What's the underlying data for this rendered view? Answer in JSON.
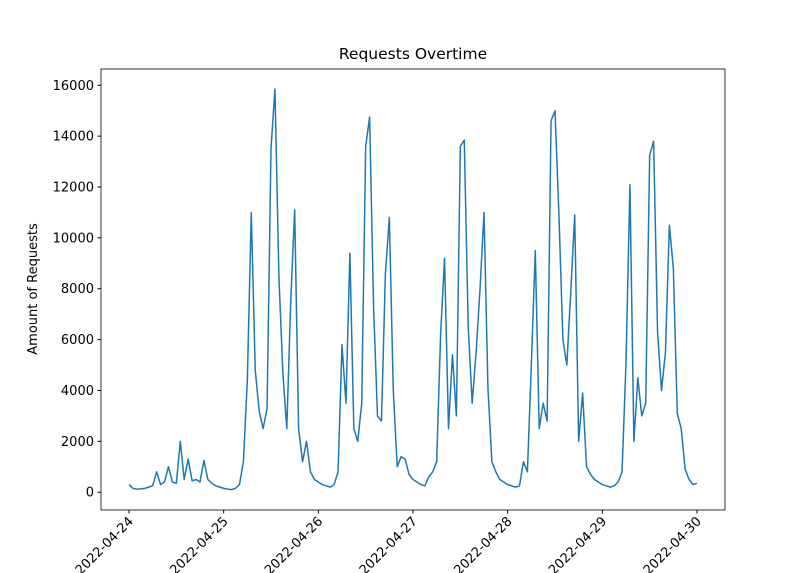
{
  "chart_data": {
    "type": "line",
    "title": "Requests Overtime",
    "y_label": "Amount of Requests",
    "x": [
      "2022-04-24T00:00",
      "2022-04-24T01:00",
      "2022-04-24T02:00",
      "2022-04-24T03:00",
      "2022-04-24T04:00",
      "2022-04-24T05:00",
      "2022-04-24T06:00",
      "2022-04-24T07:00",
      "2022-04-24T08:00",
      "2022-04-24T09:00",
      "2022-04-24T10:00",
      "2022-04-24T11:00",
      "2022-04-24T12:00",
      "2022-04-24T13:00",
      "2022-04-24T14:00",
      "2022-04-24T15:00",
      "2022-04-24T16:00",
      "2022-04-24T17:00",
      "2022-04-24T18:00",
      "2022-04-24T19:00",
      "2022-04-24T20:00",
      "2022-04-24T21:00",
      "2022-04-24T22:00",
      "2022-04-24T23:00",
      "2022-04-25T00:00",
      "2022-04-25T01:00",
      "2022-04-25T02:00",
      "2022-04-25T03:00",
      "2022-04-25T04:00",
      "2022-04-25T05:00",
      "2022-04-25T06:00",
      "2022-04-25T07:00",
      "2022-04-25T08:00",
      "2022-04-25T09:00",
      "2022-04-25T10:00",
      "2022-04-25T11:00",
      "2022-04-25T12:00",
      "2022-04-25T13:00",
      "2022-04-25T14:00",
      "2022-04-25T15:00",
      "2022-04-25T16:00",
      "2022-04-25T17:00",
      "2022-04-25T18:00",
      "2022-04-25T19:00",
      "2022-04-25T20:00",
      "2022-04-25T21:00",
      "2022-04-25T22:00",
      "2022-04-25T23:00",
      "2022-04-26T00:00",
      "2022-04-26T01:00",
      "2022-04-26T02:00",
      "2022-04-26T03:00",
      "2022-04-26T04:00",
      "2022-04-26T05:00",
      "2022-04-26T06:00",
      "2022-04-26T07:00",
      "2022-04-26T08:00",
      "2022-04-26T09:00",
      "2022-04-26T10:00",
      "2022-04-26T11:00",
      "2022-04-26T12:00",
      "2022-04-26T13:00",
      "2022-04-26T14:00",
      "2022-04-26T15:00",
      "2022-04-26T16:00",
      "2022-04-26T17:00",
      "2022-04-26T18:00",
      "2022-04-26T19:00",
      "2022-04-26T20:00",
      "2022-04-26T21:00",
      "2022-04-26T22:00",
      "2022-04-26T23:00",
      "2022-04-27T00:00",
      "2022-04-27T01:00",
      "2022-04-27T02:00",
      "2022-04-27T03:00",
      "2022-04-27T04:00",
      "2022-04-27T05:00",
      "2022-04-27T06:00",
      "2022-04-27T07:00",
      "2022-04-27T08:00",
      "2022-04-27T09:00",
      "2022-04-27T10:00",
      "2022-04-27T11:00",
      "2022-04-27T12:00",
      "2022-04-27T13:00",
      "2022-04-27T14:00",
      "2022-04-27T15:00",
      "2022-04-27T16:00",
      "2022-04-27T17:00",
      "2022-04-27T18:00",
      "2022-04-27T19:00",
      "2022-04-27T20:00",
      "2022-04-27T21:00",
      "2022-04-27T22:00",
      "2022-04-27T23:00",
      "2022-04-28T00:00",
      "2022-04-28T01:00",
      "2022-04-28T02:00",
      "2022-04-28T03:00",
      "2022-04-28T04:00",
      "2022-04-28T05:00",
      "2022-04-28T06:00",
      "2022-04-28T07:00",
      "2022-04-28T08:00",
      "2022-04-28T09:00",
      "2022-04-28T10:00",
      "2022-04-28T11:00",
      "2022-04-28T12:00",
      "2022-04-28T13:00",
      "2022-04-28T14:00",
      "2022-04-28T15:00",
      "2022-04-28T16:00",
      "2022-04-28T17:00",
      "2022-04-28T18:00",
      "2022-04-28T19:00",
      "2022-04-28T20:00",
      "2022-04-28T21:00",
      "2022-04-28T22:00",
      "2022-04-28T23:00",
      "2022-04-29T00:00",
      "2022-04-29T01:00",
      "2022-04-29T02:00",
      "2022-04-29T03:00",
      "2022-04-29T04:00",
      "2022-04-29T05:00",
      "2022-04-29T06:00",
      "2022-04-29T07:00",
      "2022-04-29T08:00",
      "2022-04-29T09:00",
      "2022-04-29T10:00",
      "2022-04-29T11:00",
      "2022-04-29T12:00",
      "2022-04-29T13:00",
      "2022-04-29T14:00",
      "2022-04-29T15:00",
      "2022-04-29T16:00",
      "2022-04-29T17:00",
      "2022-04-29T18:00",
      "2022-04-29T19:00",
      "2022-04-29T20:00",
      "2022-04-29T21:00",
      "2022-04-29T22:00",
      "2022-04-29T23:00",
      "2022-04-30T00:00"
    ],
    "series": [
      {
        "name": "Requests",
        "color": "#1f77b4",
        "values": [
          300,
          150,
          120,
          130,
          150,
          200,
          250,
          800,
          300,
          400,
          1000,
          400,
          350,
          2000,
          500,
          1300,
          450,
          500,
          400,
          1250,
          500,
          350,
          250,
          200,
          150,
          120,
          100,
          150,
          300,
          1200,
          4400,
          11000,
          4800,
          3200,
          2500,
          3300,
          13500,
          15850,
          8500,
          4700,
          2500,
          7500,
          11100,
          2500,
          1200,
          2000,
          800,
          500,
          400,
          300,
          250,
          200,
          300,
          800,
          5800,
          3500,
          9400,
          2500,
          2000,
          3500,
          13600,
          14750,
          7300,
          3000,
          2800,
          8600,
          10800,
          4000,
          1000,
          1400,
          1300,
          700,
          500,
          400,
          300,
          250,
          600,
          800,
          1200,
          6200,
          9200,
          2500,
          5400,
          3000,
          13600,
          13850,
          6500,
          3500,
          5500,
          8000,
          11000,
          4100,
          1200,
          800,
          500,
          400,
          300,
          250,
          200,
          250,
          1200,
          800,
          5000,
          9500,
          2500,
          3500,
          2800,
          14600,
          15000,
          10900,
          6000,
          5000,
          7900,
          10900,
          2000,
          3900,
          1000,
          700,
          500,
          400,
          300,
          250,
          200,
          250,
          400,
          800,
          5100,
          12100,
          2000,
          4500,
          3000,
          3500,
          13250,
          13800,
          6300,
          4000,
          5500,
          10500,
          8800,
          3100,
          2500,
          900,
          500,
          300,
          350
        ]
      }
    ],
    "xlim": [
      "2022-04-23T16:54",
      "2022-04-30T07:06"
    ],
    "xticks": [
      "2022-04-24",
      "2022-04-25",
      "2022-04-26",
      "2022-04-27",
      "2022-04-28",
      "2022-04-29",
      "2022-04-30"
    ],
    "ylim": [
      -700,
      16640
    ],
    "yticks": [
      0,
      2000,
      4000,
      6000,
      8000,
      10000,
      12000,
      14000,
      16000
    ],
    "grid": false
  }
}
